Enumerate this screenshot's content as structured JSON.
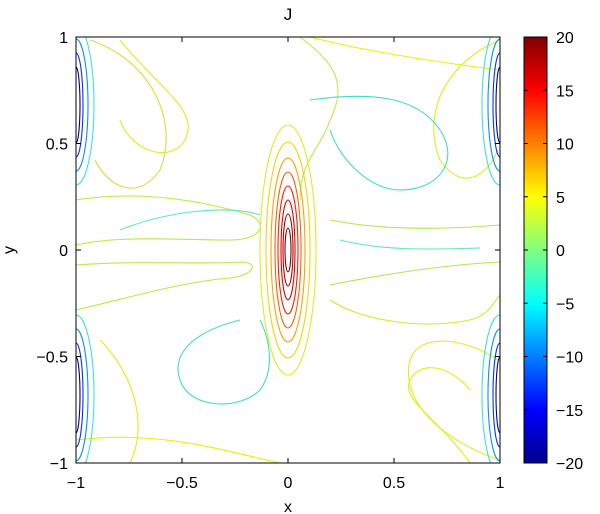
{
  "chart_data": {
    "type": "contour",
    "title": "J",
    "xlabel": "x",
    "ylabel": "y",
    "xlim": [
      -1,
      1
    ],
    "ylim": [
      -1,
      1
    ],
    "x_ticks": [
      "-1",
      "-0.5",
      "0",
      "0.5",
      "1"
    ],
    "y_ticks": [
      "-1",
      "-0.5",
      "0",
      "0.5",
      "1"
    ],
    "colorbar": {
      "colormap": "jet",
      "range": [
        -20,
        20
      ],
      "ticks": [
        "20",
        "15",
        "10",
        "5",
        "0",
        "-5",
        "-10",
        "-15",
        "-20"
      ]
    },
    "features": [
      {
        "kind": "peak",
        "x": 0.0,
        "y": 0.0,
        "value": 20
      },
      {
        "kind": "trough",
        "x": -1.0,
        "y": 0.75,
        "value": -20
      },
      {
        "kind": "trough",
        "x": -1.0,
        "y": -0.75,
        "value": -20
      },
      {
        "kind": "trough",
        "x": 1.0,
        "y": 0.75,
        "value": -20
      },
      {
        "kind": "trough",
        "x": 1.0,
        "y": -0.75,
        "value": -20
      }
    ]
  }
}
